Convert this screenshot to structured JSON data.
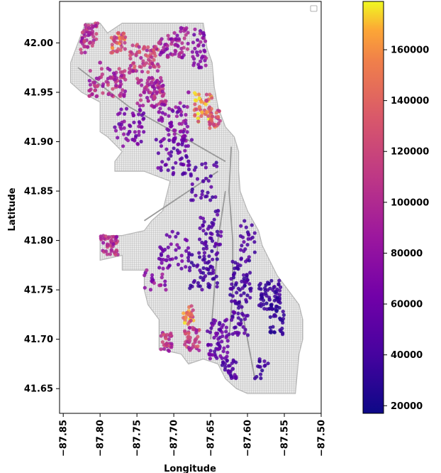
{
  "chart_data": {
    "type": "scatter",
    "title": "",
    "xlabel": "Longitude",
    "ylabel": "Latitude",
    "xlim": [
      -87.855,
      -87.5
    ],
    "ylim": [
      41.625,
      42.042
    ],
    "x_ticks": [
      -87.85,
      -87.8,
      -87.75,
      -87.7,
      -87.65,
      -87.6,
      -87.55,
      -87.5
    ],
    "x_tick_labels": [
      "−87.85",
      "−87.80",
      "−87.75",
      "−87.70",
      "−87.65",
      "−87.60",
      "−87.55",
      "−87.50"
    ],
    "y_ticks": [
      41.65,
      41.7,
      41.75,
      41.8,
      41.85,
      41.9,
      41.95,
      42.0
    ],
    "y_tick_labels": [
      "41.65",
      "41.70",
      "41.75",
      "41.80",
      "41.85",
      "41.90",
      "41.95",
      "42.00"
    ],
    "grid": false,
    "legend": "top-right (empty)",
    "colorbar": {
      "colormap": "plasma",
      "vmin": 17000,
      "vmax": 179000,
      "ticks": [
        20000,
        40000,
        60000,
        80000,
        100000,
        120000,
        140000,
        160000
      ],
      "tick_labels": [
        "20000",
        "40000",
        "60000",
        "80000",
        "100000",
        "120000",
        "140000",
        "160000"
      ]
    },
    "basemap": {
      "color": "#9a9a9a",
      "boundary": [
        [
          -87.84,
          41.98
        ],
        [
          -87.82,
          42.02
        ],
        [
          -87.8,
          42.02
        ],
        [
          -87.79,
          42.01
        ],
        [
          -87.77,
          42.02
        ],
        [
          -87.72,
          42.02
        ],
        [
          -87.7,
          42.02
        ],
        [
          -87.67,
          42.02
        ],
        [
          -87.66,
          42.02
        ],
        [
          -87.655,
          41.995
        ],
        [
          -87.648,
          41.98
        ],
        [
          -87.645,
          41.955
        ],
        [
          -87.64,
          41.935
        ],
        [
          -87.63,
          41.915
        ],
        [
          -87.618,
          41.905
        ],
        [
          -87.612,
          41.89
        ],
        [
          -87.612,
          41.87
        ],
        [
          -87.61,
          41.85
        ],
        [
          -87.6,
          41.83
        ],
        [
          -87.585,
          41.81
        ],
        [
          -87.58,
          41.795
        ],
        [
          -87.57,
          41.78
        ],
        [
          -87.56,
          41.765
        ],
        [
          -87.545,
          41.75
        ],
        [
          -87.53,
          41.735
        ],
        [
          -87.525,
          41.72
        ],
        [
          -87.525,
          41.7
        ],
        [
          -87.53,
          41.685
        ],
        [
          -87.535,
          41.645
        ],
        [
          -87.6,
          41.645
        ],
        [
          -87.615,
          41.65
        ],
        [
          -87.63,
          41.66
        ],
        [
          -87.64,
          41.675
        ],
        [
          -87.66,
          41.68
        ],
        [
          -87.68,
          41.675
        ],
        [
          -87.69,
          41.685
        ],
        [
          -87.72,
          41.69
        ],
        [
          -87.72,
          41.72
        ],
        [
          -87.735,
          41.735
        ],
        [
          -87.74,
          41.75
        ],
        [
          -87.74,
          41.77
        ],
        [
          -87.77,
          41.77
        ],
        [
          -87.77,
          41.785
        ],
        [
          -87.8,
          41.78
        ],
        [
          -87.8,
          41.805
        ],
        [
          -87.77,
          41.805
        ],
        [
          -87.74,
          41.81
        ],
        [
          -87.73,
          41.82
        ],
        [
          -87.715,
          41.83
        ],
        [
          -87.705,
          41.86
        ],
        [
          -87.74,
          41.87
        ],
        [
          -87.78,
          41.87
        ],
        [
          -87.78,
          41.88
        ],
        [
          -87.77,
          41.89
        ],
        [
          -87.79,
          41.905
        ],
        [
          -87.8,
          41.91
        ],
        [
          -87.8,
          41.94
        ],
        [
          -87.825,
          41.95
        ],
        [
          -87.84,
          41.96
        ]
      ],
      "major_roads": [
        [
          [
            -87.622,
            41.895
          ],
          [
            -87.625,
            41.85
          ],
          [
            -87.62,
            41.8
          ],
          [
            -87.62,
            41.75
          ],
          [
            -87.625,
            41.7
          ]
        ],
        [
          [
            -87.63,
            41.88
          ],
          [
            -87.7,
            41.91
          ],
          [
            -87.76,
            41.935
          ],
          [
            -87.83,
            41.975
          ]
        ],
        [
          [
            -87.64,
            41.87
          ],
          [
            -87.68,
            41.85
          ],
          [
            -87.74,
            41.82
          ]
        ],
        [
          [
            -87.63,
            41.85
          ],
          [
            -87.64,
            41.8
          ],
          [
            -87.645,
            41.75
          ],
          [
            -87.65,
            41.7
          ]
        ],
        [
          [
            -87.61,
            41.74
          ],
          [
            -87.6,
            41.7
          ],
          [
            -87.59,
            41.66
          ]
        ]
      ]
    },
    "points_sample": [
      [
        -87.815,
        42.015,
        95000
      ],
      [
        -87.775,
        42.01,
        130000
      ],
      [
        -87.77,
        42.005,
        140000
      ],
      [
        -87.74,
        41.995,
        125000
      ],
      [
        -87.72,
        42.0,
        110000
      ],
      [
        -87.69,
        42.015,
        75000
      ],
      [
        -87.66,
        42.01,
        65000
      ],
      [
        -87.8,
        41.98,
        90000
      ],
      [
        -87.76,
        41.97,
        100000
      ],
      [
        -87.73,
        41.96,
        95000
      ],
      [
        -87.68,
        41.95,
        80000
      ],
      [
        -87.665,
        41.935,
        150000
      ],
      [
        -87.655,
        41.93,
        160000
      ],
      [
        -87.64,
        41.925,
        140000
      ],
      [
        -87.72,
        41.93,
        75000
      ],
      [
        -87.76,
        41.91,
        60000
      ],
      [
        -87.7,
        41.9,
        55000
      ],
      [
        -87.68,
        41.88,
        50000
      ],
      [
        -87.66,
        41.86,
        45000
      ],
      [
        -87.64,
        41.83,
        40000
      ],
      [
        -87.79,
        41.795,
        100000
      ],
      [
        -87.71,
        41.78,
        60000
      ],
      [
        -87.66,
        41.76,
        40000
      ],
      [
        -87.6,
        41.76,
        40000
      ],
      [
        -87.57,
        41.74,
        35000
      ],
      [
        -87.555,
        41.72,
        30000
      ],
      [
        -87.68,
        41.725,
        150000
      ],
      [
        -87.67,
        41.7,
        110000
      ],
      [
        -87.71,
        41.695,
        105000
      ],
      [
        -87.64,
        41.69,
        60000
      ],
      [
        -87.62,
        41.67,
        45000
      ],
      [
        -87.61,
        41.715,
        45000
      ]
    ]
  }
}
